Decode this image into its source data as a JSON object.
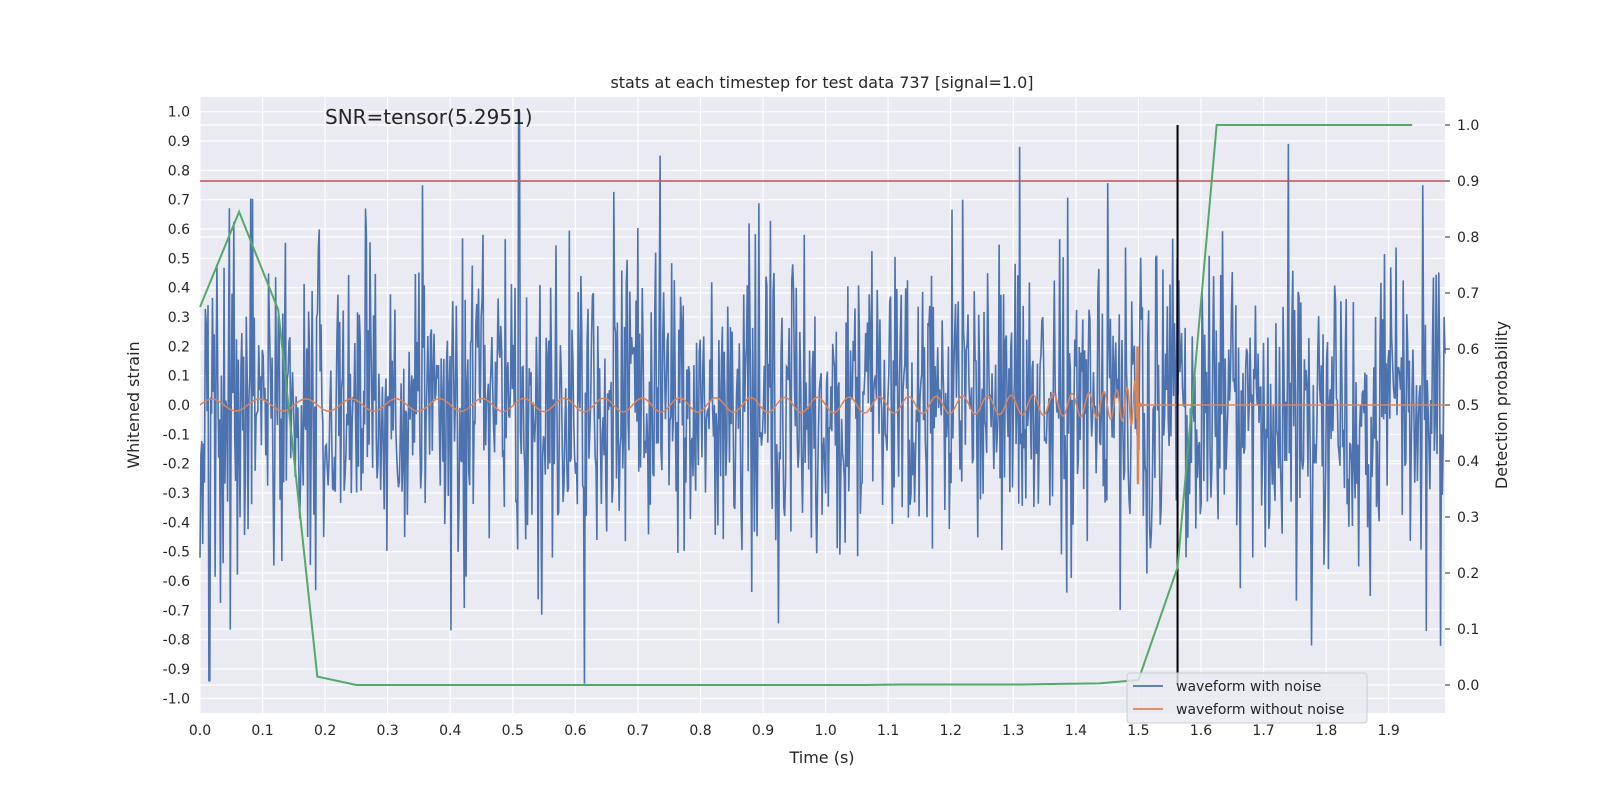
{
  "chart_data": {
    "type": "line",
    "title": "stats at each timestep for test data 737 [signal=1.0]",
    "annotation": "SNR=tensor(5.2951)",
    "xlabel": "Time (s)",
    "ylabel_left": "Whitened strain",
    "ylabel_right": "Detection probability",
    "xlim": [
      0.0,
      1.99
    ],
    "ylim_left": [
      -1.05,
      1.05
    ],
    "ylim_right": [
      -0.05,
      1.05
    ],
    "x_ticks": [
      "0.0",
      "0.1",
      "0.2",
      "0.3",
      "0.4",
      "0.5",
      "0.6",
      "0.7",
      "0.8",
      "0.9",
      "1.0",
      "1.1",
      "1.2",
      "1.3",
      "1.4",
      "1.5",
      "1.6",
      "1.7",
      "1.8",
      "1.9"
    ],
    "y_ticks_left": [
      "-1.0",
      "-0.9",
      "-0.8",
      "-0.7",
      "-0.6",
      "-0.5",
      "-0.4",
      "-0.3",
      "-0.2",
      "-0.1",
      "0.0",
      "0.1",
      "0.2",
      "0.3",
      "0.4",
      "0.5",
      "0.6",
      "0.7",
      "0.8",
      "0.9",
      "1.0"
    ],
    "y_ticks_right": [
      "0.0",
      "0.1",
      "0.2",
      "0.3",
      "0.4",
      "0.5",
      "0.6",
      "0.7",
      "0.8",
      "0.9",
      "1.0"
    ],
    "grid": true,
    "legend_position": "bottom-right",
    "threshold": {
      "value": 0.9,
      "axis": "right",
      "color": "#c44e52"
    },
    "vertical_marker": {
      "x": 1.5625,
      "color": "#000000"
    },
    "series": [
      {
        "name": "waveform with noise",
        "axis": "left",
        "color": "#4c72b0",
        "generated": "noise",
        "x_range": [
          0.0,
          1.99
        ],
        "amplitude_peaks": [
          {
            "x": 0.51,
            "y": 1.0
          },
          {
            "x": 0.735,
            "y": 0.85
          },
          {
            "x": 1.31,
            "y": 0.88
          },
          {
            "x": 1.74,
            "y": 0.89
          },
          {
            "x": 0.615,
            "y": -0.95
          },
          {
            "x": 0.015,
            "y": -0.94
          }
        ]
      },
      {
        "name": "waveform without noise",
        "axis": "left",
        "color": "#dd8452",
        "generated": "chirp",
        "x_range": [
          0.0,
          1.99
        ],
        "merger_time": 1.5,
        "peak_amplitude": 0.2
      },
      {
        "name": "",
        "axis": "right",
        "color": "#55a868",
        "x": [
          0.0,
          0.0625,
          0.125,
          0.1875,
          0.25,
          0.3125,
          0.375,
          0.4375,
          0.5,
          0.5625,
          0.625,
          0.6875,
          0.75,
          0.8125,
          0.875,
          0.9375,
          1.0,
          1.0625,
          1.125,
          1.1875,
          1.25,
          1.3125,
          1.375,
          1.4375,
          1.5,
          1.5625,
          1.625,
          1.6875,
          1.75,
          1.8125,
          1.875,
          1.9375
        ],
        "y": [
          0.675,
          0.845,
          0.67,
          0.015,
          0.0,
          0.0,
          0.0,
          0.0,
          0.0,
          0.0,
          0.0,
          0.0,
          0.0,
          0.0,
          0.0,
          0.0,
          0.0,
          0.0,
          0.001,
          0.001,
          0.001,
          0.001,
          0.002,
          0.003,
          0.009,
          0.21,
          1.0,
          1.0,
          1.0,
          1.0,
          1.0,
          1.0
        ]
      }
    ]
  }
}
